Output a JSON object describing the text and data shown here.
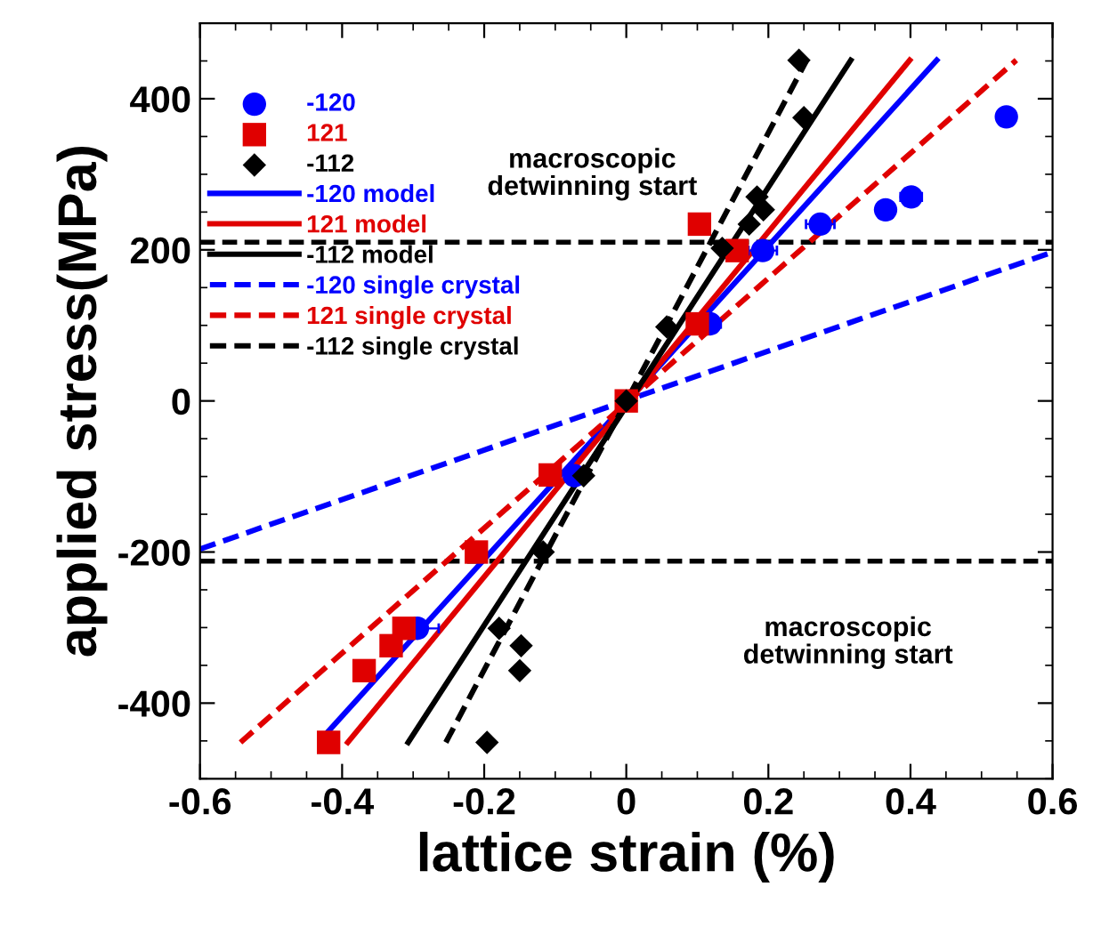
{
  "chart_data": {
    "type": "scatter",
    "xlabel": "lattice strain (%)",
    "ylabel": "applied stress(MPa)",
    "xlim": [
      -0.6,
      0.6
    ],
    "ylim": [
      -500,
      500
    ],
    "xticks": [
      -0.6,
      -0.4,
      -0.2,
      0,
      0.2,
      0.4,
      0.6
    ],
    "yticks": [
      -400,
      -200,
      0,
      200,
      400
    ],
    "grid": false,
    "legend": "top left",
    "series": [
      {
        "name": "-120",
        "marker": "circle",
        "color": "#0000ff",
        "x": [
          0.535,
          0.401,
          0.365,
          0.273,
          0.192,
          0.118,
          -0.073,
          -0.294
        ],
        "values": [
          376,
          270,
          253,
          234,
          199,
          102,
          -99,
          -301
        ],
        "xerrors": [
          null,
          0.015,
          null,
          0.02,
          0.02,
          0.015,
          null,
          0.03
        ]
      },
      {
        "name": "121",
        "marker": "square",
        "color": "#e00000",
        "x": [
          0.103,
          0.156,
          0.1,
          0,
          -0.107,
          -0.211,
          -0.313,
          -0.331,
          -0.369,
          -0.419
        ],
        "values": [
          234,
          199,
          102,
          0,
          -98,
          -200,
          -301,
          -324,
          -357,
          -452
        ]
      },
      {
        "name": "-112",
        "marker": "diamond",
        "color": "#000000",
        "x": [
          0.243,
          0.25,
          0.193,
          0.184,
          0.173,
          0.135,
          0.057,
          0,
          -0.06,
          -0.117,
          -0.179,
          -0.148,
          -0.15,
          -0.196
        ],
        "values": [
          451,
          375,
          253,
          270,
          234,
          202,
          98,
          0,
          -99,
          -200,
          -301,
          -324,
          -357,
          -452
        ]
      },
      {
        "name": "-120 model",
        "type": "line",
        "line_style": "solid",
        "color": "#0000ff",
        "x": [
          -0.422,
          0.437
        ],
        "values": [
          -440,
          451
        ]
      },
      {
        "name": "121 model",
        "type": "line",
        "line_style": "solid",
        "color": "#e00000",
        "x": [
          -0.392,
          0.399
        ],
        "values": [
          -452,
          451
        ]
      },
      {
        "name": "-112 model",
        "type": "line",
        "line_style": "solid",
        "color": "#000000",
        "x": [
          -0.307,
          0.316
        ],
        "values": [
          -452,
          451
        ]
      },
      {
        "name": "-120 single crystal",
        "type": "line",
        "line_style": "dashed",
        "color": "#0000ff",
        "x": [
          -0.6,
          0.6
        ],
        "values": [
          -196,
          197
        ]
      },
      {
        "name": "121 single crystal",
        "type": "line",
        "line_style": "dashed",
        "color": "#e00000",
        "x": [
          -0.543,
          0.549
        ],
        "values": [
          -452,
          451
        ]
      },
      {
        "name": "-112 single crystal",
        "type": "line",
        "line_style": "dashed",
        "color": "#000000",
        "x": [
          -0.254,
          0.254
        ],
        "values": [
          -452,
          451
        ]
      }
    ],
    "ref_lines": [
      {
        "axis": "y",
        "value": 210,
        "color": "#000000",
        "line_style": "dashed"
      },
      {
        "axis": "y",
        "value": -212,
        "color": "#000000",
        "line_style": "dashed"
      }
    ],
    "annotations": [
      "macroscopic\ndetwinning start",
      "macroscopic\ndetwinning start"
    ]
  }
}
